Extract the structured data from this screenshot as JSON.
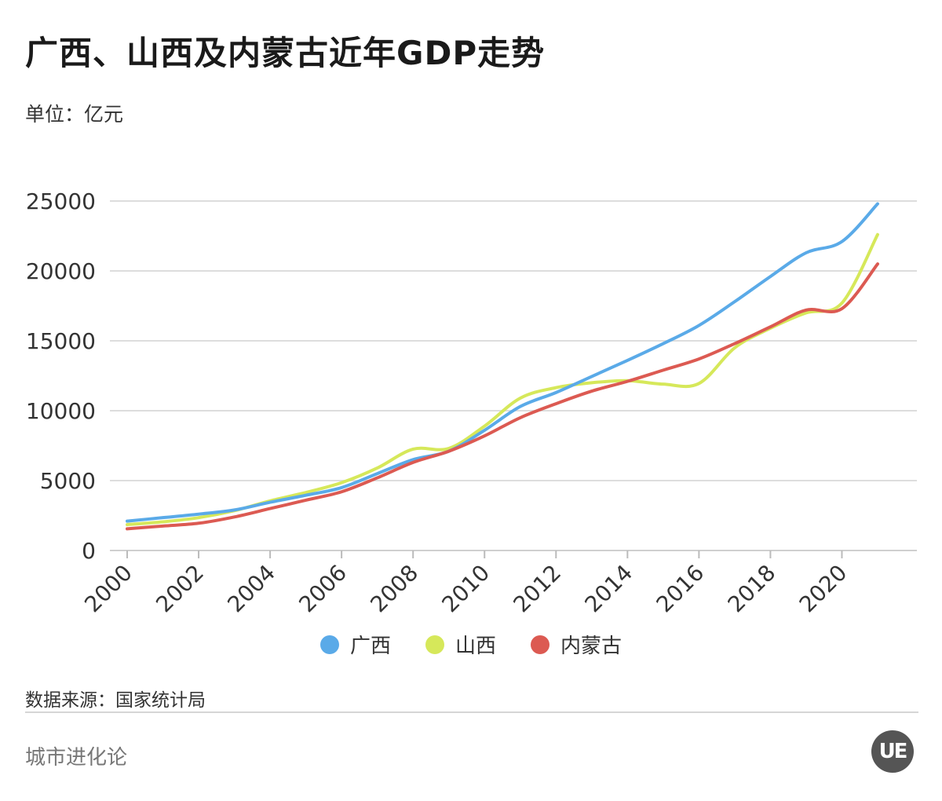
{
  "header": {
    "title": "广西、山西及内蒙古近年GDP走势",
    "unit": "单位：亿元"
  },
  "chart_data": {
    "type": "line",
    "title": "广西、山西及内蒙古近年GDP走势",
    "ylabel": "单位：亿元",
    "xlabel": "",
    "x": [
      2000,
      2001,
      2002,
      2003,
      2004,
      2005,
      2006,
      2007,
      2008,
      2009,
      2010,
      2011,
      2012,
      2013,
      2014,
      2015,
      2016,
      2017,
      2018,
      2019,
      2020,
      2021
    ],
    "xticks": [
      "2000",
      "2002",
      "2004",
      "2006",
      "2008",
      "2010",
      "2012",
      "2014",
      "2016",
      "2018",
      "2020"
    ],
    "yticks": [
      "0",
      "5000",
      "10000",
      "15000",
      "20000",
      "25000"
    ],
    "xlim": [
      2000,
      2021
    ],
    "ylim": [
      0,
      25000
    ],
    "grid": true,
    "legend_position": "bottom",
    "series": [
      {
        "name": "广西",
        "color": "#5aaae8",
        "values": [
          2100,
          2350,
          2600,
          2900,
          3450,
          3950,
          4500,
          5500,
          6500,
          7100,
          8600,
          10300,
          11300,
          12450,
          13600,
          14800,
          16100,
          17800,
          19600,
          21300,
          22100,
          24800
        ]
      },
      {
        "name": "山西",
        "color": "#d6e85a",
        "values": [
          1850,
          2050,
          2350,
          2850,
          3550,
          4150,
          4850,
          5900,
          7250,
          7300,
          8900,
          10900,
          11650,
          12000,
          12150,
          11900,
          11950,
          14500,
          15900,
          17000,
          17700,
          22600
        ]
      },
      {
        "name": "内蒙古",
        "color": "#dc5a52",
        "values": [
          1550,
          1750,
          1950,
          2400,
          3000,
          3600,
          4200,
          5200,
          6300,
          7100,
          8200,
          9500,
          10500,
          11400,
          12100,
          12900,
          13700,
          14800,
          16000,
          17200,
          17300,
          20500
        ]
      }
    ]
  },
  "legend": {
    "items": [
      {
        "label": "广西",
        "color": "#5aaae8"
      },
      {
        "label": "山西",
        "color": "#d6e85a"
      },
      {
        "label": "内蒙古",
        "color": "#dc5a52"
      }
    ]
  },
  "footer": {
    "source": "数据来源：国家统计局",
    "brand": "城市进化论",
    "logo_text": "UE"
  }
}
